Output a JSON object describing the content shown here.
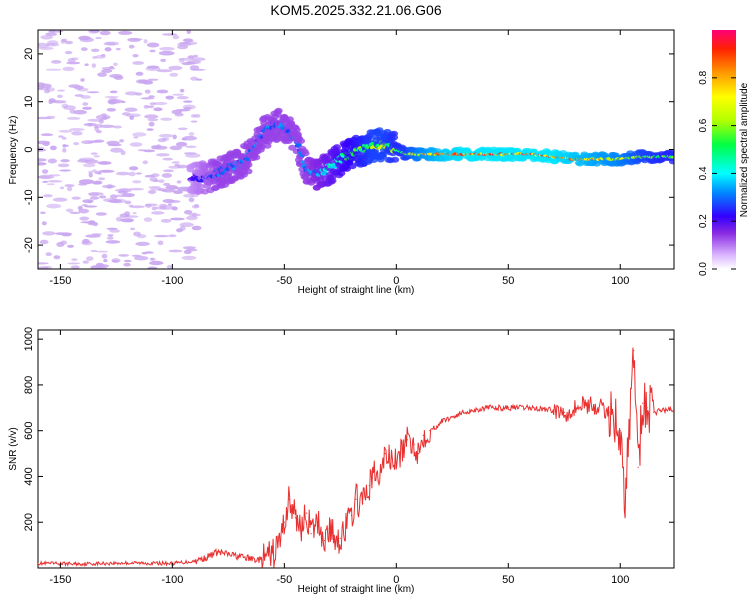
{
  "figure": {
    "title": "KOM5.2025.332.21.06.G06"
  },
  "chart_data": [
    {
      "type": "heatmap",
      "title": "KOM5.2025.332.21.06.G06",
      "xlabel": "Height of straight line (km)",
      "ylabel": "Frequency (Hz)",
      "xlim": [
        -160,
        124
      ],
      "ylim": [
        -25,
        25
      ],
      "x_ticks": [
        -150,
        -100,
        -50,
        0,
        50,
        100
      ],
      "y_ticks": [
        -20,
        -10,
        0,
        10,
        20
      ],
      "colorbar": {
        "label": "Normalized spectral amplitude",
        "range": [
          0,
          1
        ],
        "ticks": [
          0.0,
          0.2,
          0.4,
          0.6,
          0.8
        ]
      },
      "trace": {
        "x": [
          -90,
          -85,
          -80,
          -75,
          -70,
          -65,
          -60,
          -55,
          -50,
          -45,
          -40,
          -35,
          -30,
          -25,
          -20,
          -15,
          -10,
          -5,
          0,
          5,
          10,
          15,
          20,
          30,
          40,
          50,
          60,
          70,
          80,
          90,
          100,
          110,
          120
        ],
        "frequency": [
          -6,
          -6,
          -5,
          -4,
          -3,
          -1,
          3,
          5,
          5,
          2,
          -4,
          -5,
          -4,
          -2,
          -1,
          0,
          1,
          1,
          0,
          -1,
          -1,
          -1,
          -1,
          -1,
          -1,
          -1,
          -1,
          -1.5,
          -2,
          -2,
          -2,
          -1.5,
          -1.5
        ],
        "amplitude": [
          0.2,
          0.25,
          0.3,
          0.3,
          0.3,
          0.3,
          0.3,
          0.3,
          0.3,
          0.3,
          0.3,
          0.35,
          0.4,
          0.45,
          0.5,
          0.55,
          0.6,
          0.6,
          0.55,
          0.6,
          0.7,
          0.75,
          0.8,
          0.85,
          0.85,
          0.85,
          0.85,
          0.85,
          0.8,
          0.75,
          0.7,
          0.6,
          0.55
        ]
      }
    },
    {
      "type": "line",
      "xlabel": "Height of straight line (km)",
      "ylabel": "SNR (v/v)",
      "xlim": [
        -160,
        124
      ],
      "ylim": [
        0,
        1040
      ],
      "x_ticks": [
        -150,
        -100,
        -50,
        0,
        50,
        100
      ],
      "y_ticks": [
        200,
        400,
        600,
        800,
        1000
      ],
      "series": [
        {
          "name": "SNR",
          "color": "#e83030",
          "x": [
            -160,
            -140,
            -120,
            -100,
            -90,
            -85,
            -80,
            -75,
            -70,
            -65,
            -60,
            -55,
            -52,
            -50,
            -48,
            -45,
            -42,
            -40,
            -38,
            -35,
            -32,
            -30,
            -28,
            -25,
            -22,
            -20,
            -18,
            -15,
            -12,
            -10,
            -8,
            -5,
            -3,
            0,
            3,
            5,
            8,
            10,
            12,
            15,
            18,
            20,
            25,
            30,
            35,
            40,
            50,
            60,
            70,
            75,
            80,
            85,
            90,
            95,
            98,
            100,
            102,
            104,
            106,
            108,
            110,
            112,
            115,
            118,
            120,
            124
          ],
          "y": [
            20,
            18,
            22,
            20,
            30,
            45,
            70,
            60,
            50,
            40,
            35,
            60,
            120,
            200,
            300,
            220,
            180,
            240,
            150,
            200,
            120,
            170,
            140,
            130,
            190,
            230,
            300,
            280,
            360,
            420,
            380,
            500,
            480,
            460,
            520,
            560,
            540,
            500,
            580,
            600,
            620,
            640,
            660,
            680,
            690,
            700,
            700,
            700,
            690,
            680,
            700,
            720,
            700,
            680,
            650,
            600,
            250,
            620,
            950,
            440,
            720,
            700,
            680,
            690,
            690,
            690
          ]
        }
      ]
    }
  ]
}
